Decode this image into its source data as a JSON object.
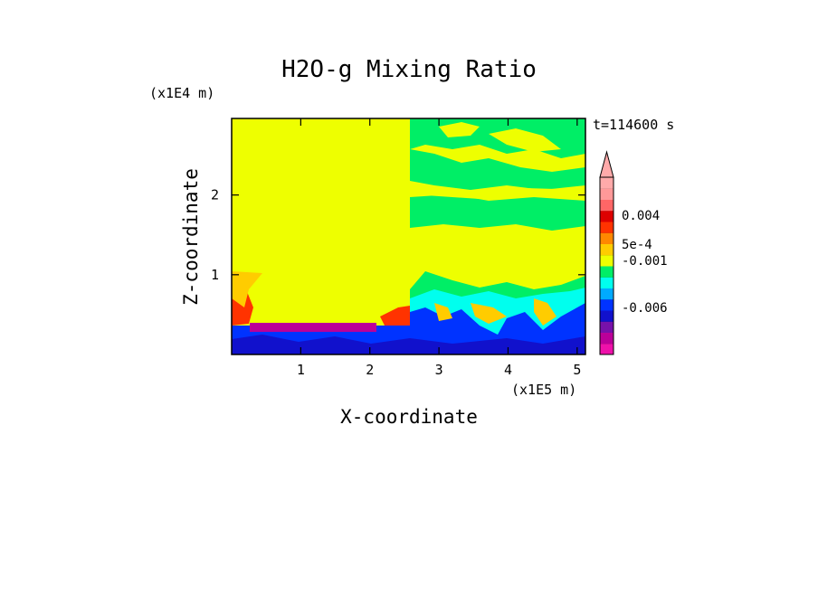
{
  "chart_data": {
    "type": "heatmap",
    "title": "H2O-g Mixing Ratio",
    "time_label": "t=114600 s",
    "xlabel": "X-coordinate",
    "ylabel": "Z-coordinate",
    "x_scale_label": "(x1E5 m)",
    "y_scale_label": "(x1E4 m)",
    "x_ticks": [
      "1",
      "2",
      "3",
      "4",
      "5"
    ],
    "y_ticks": [
      "1",
      "2"
    ],
    "xlim": [
      0,
      5.12
    ],
    "ylim": [
      0,
      2.96
    ],
    "colorbar": {
      "colors": [
        "#ee11aa",
        "#bb0099",
        "#7711aa",
        "#1111cc",
        "#0033ff",
        "#00aaff",
        "#00ffee",
        "#00ee66",
        "#eeff00",
        "#ffcc00",
        "#ff8800",
        "#ff3300",
        "#dd0000",
        "#ff6666",
        "#ff9999",
        "#ffaaaa"
      ],
      "labels": [
        "0.004",
        "5e-4",
        "-0.001",
        "-0.006"
      ],
      "extend_top": true
    },
    "regions": [
      {
        "color": "#eeff00",
        "x": [
          0,
          2.58
        ],
        "z": [
          0.35,
          2.96
        ]
      },
      {
        "color": "#eeff00",
        "x": [
          2.58,
          5.12
        ],
        "z": [
          0.9,
          1.6
        ]
      },
      {
        "color": "#00ee66",
        "x": [
          2.58,
          5.12
        ],
        "z": [
          1.6,
          2.96
        ]
      },
      {
        "color": "#eeff00",
        "x": [
          2.58,
          5.12
        ],
        "z": [
          2.2,
          2.5
        ]
      },
      {
        "color": "#0033ff",
        "x": [
          0,
          5.12
        ],
        "z": [
          0,
          0.4
        ]
      },
      {
        "color": "#bb0099",
        "x": [
          0.25,
          2.35
        ],
        "z": [
          0.32,
          0.42
        ]
      },
      {
        "color": "#ff3300",
        "x": [
          0,
          0.25
        ],
        "z": [
          0.35,
          0.65
        ]
      }
    ]
  }
}
